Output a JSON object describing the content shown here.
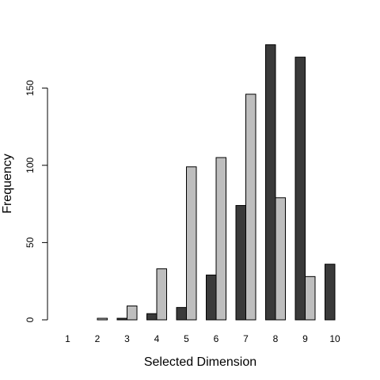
{
  "chart_data": {
    "type": "bar",
    "title": "",
    "xlabel": "Selected Dimension",
    "ylabel": "Frequency",
    "categories": [
      "1",
      "2",
      "3",
      "4",
      "5",
      "6",
      "7",
      "8",
      "9",
      "10"
    ],
    "series": [
      {
        "values": [
          0,
          0,
          1,
          4,
          8,
          29,
          74,
          178,
          170,
          36
        ],
        "color": "#3a3a3a"
      },
      {
        "values": [
          0,
          1,
          9,
          33,
          99,
          105,
          146,
          79,
          28,
          0
        ],
        "color": "#bebebe"
      }
    ],
    "yticks": [
      0,
      50,
      100,
      150
    ],
    "ylim": [
      0,
      184
    ],
    "grid": false,
    "legend": "none"
  }
}
